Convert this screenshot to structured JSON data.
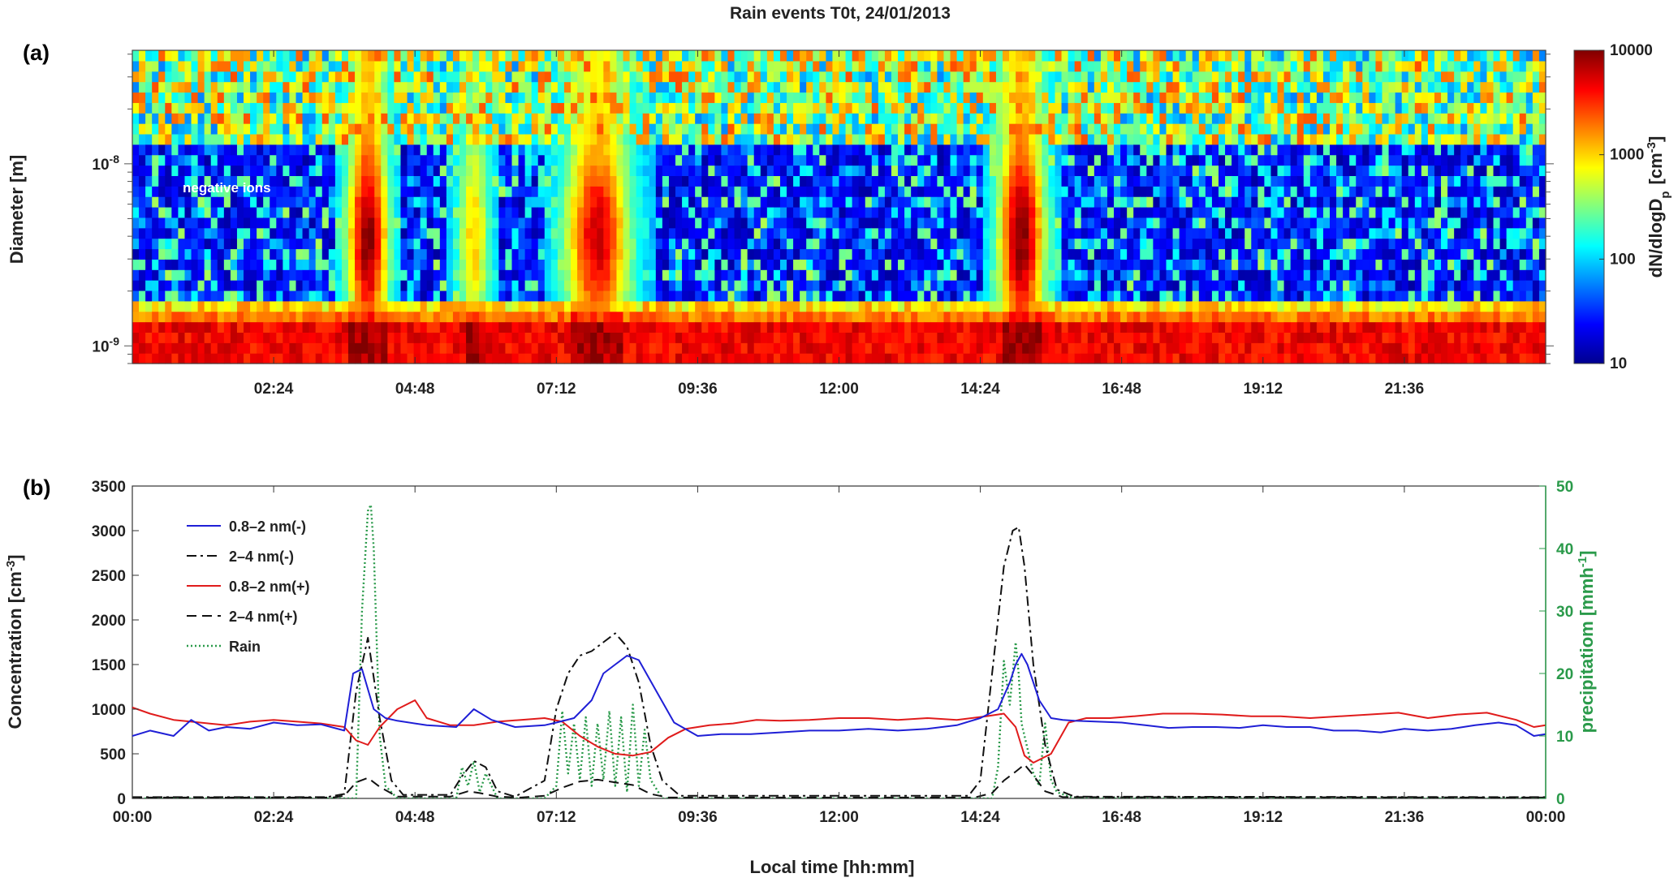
{
  "chart_data": [
    {
      "type": "heatmap",
      "panel_label": "(a)",
      "title": "Rain events T0t, 24/01/2013",
      "ylabel": "Diameter  [m]",
      "y_scale": "log",
      "ylim": [
        8e-10,
        4.2e-08
      ],
      "y_ticks": [
        {
          "value": 1e-09,
          "base": "10",
          "exp": "-9"
        },
        {
          "value": 1e-08,
          "base": "10",
          "exp": "-8"
        }
      ],
      "x_tick_labels": [
        "02:24",
        "04:48",
        "07:12",
        "09:36",
        "12:00",
        "14:24",
        "16:48",
        "19:12",
        "21:36"
      ],
      "x_tick_hours": [
        2.4,
        4.8,
        7.2,
        9.6,
        12.0,
        14.4,
        16.8,
        19.2,
        21.6
      ],
      "xlim_hours": [
        0,
        24
      ],
      "annotation": "negative ions",
      "colorbar": {
        "label_prefix": "dN/dlogD",
        "label_sub": "p",
        "label_unit": "[cm",
        "label_unit_exp": "-3",
        "label_close": "]",
        "scale": "log",
        "range": [
          10,
          10000
        ],
        "ticks": [
          {
            "value": 10,
            "label": "10"
          },
          {
            "value": 100,
            "label": "100"
          },
          {
            "value": 1000,
            "label": "1000"
          },
          {
            "value": 10000,
            "label": "10000"
          }
        ]
      },
      "rain_events_hours": [
        {
          "center": 4.0,
          "width": 0.35,
          "strength": 1.0
        },
        {
          "center": 5.8,
          "width": 0.28,
          "strength": 0.55
        },
        {
          "center": 7.9,
          "width": 0.55,
          "strength": 0.9
        },
        {
          "center": 15.1,
          "width": 0.4,
          "strength": 1.0
        }
      ]
    },
    {
      "type": "line",
      "panel_label": "(b)",
      "xlabel": "Local time [hh:mm]",
      "ylabel_left": "Concentration [cm",
      "ylabel_left_exp": "-3",
      "ylabel_left_close": "]",
      "ylabel_right": "precipitatiom [mmh",
      "ylabel_right_exp": "-1",
      "ylabel_right_close": "]",
      "xlim_hours": [
        0,
        24
      ],
      "x_tick_labels": [
        "00:00",
        "02:24",
        "04:48",
        "07:12",
        "09:36",
        "12:00",
        "14:24",
        "16:48",
        "19:12",
        "21:36",
        "00:00"
      ],
      "x_tick_hours": [
        0,
        2.4,
        4.8,
        7.2,
        9.6,
        12.0,
        14.4,
        16.8,
        19.2,
        21.6,
        24.0
      ],
      "ylim_left": [
        0,
        3500
      ],
      "y_ticks_left": [
        0,
        500,
        1000,
        1500,
        2000,
        2500,
        3000,
        3500
      ],
      "ylim_right": [
        0,
        50
      ],
      "y_ticks_right": [
        0,
        10,
        20,
        30,
        40,
        50
      ],
      "colors": {
        "blue": "#1f1fd6",
        "red": "#e01b1b",
        "black": "#111111",
        "green": "#2a9a4a"
      },
      "series": [
        {
          "name": "0.8–2 nm(-)",
          "color": "#1f1fd6",
          "dash": "solid",
          "axis": "left",
          "x": [
            0,
            0.3,
            0.7,
            1.0,
            1.3,
            1.6,
            2.0,
            2.4,
            2.8,
            3.2,
            3.6,
            3.75,
            3.9,
            4.1,
            4.3,
            4.5,
            5.0,
            5.5,
            5.8,
            6.1,
            6.5,
            7.0,
            7.2,
            7.5,
            7.8,
            8.0,
            8.2,
            8.4,
            8.6,
            8.9,
            9.2,
            9.6,
            10.0,
            10.5,
            11.0,
            11.5,
            12.0,
            12.5,
            13.0,
            13.5,
            14.0,
            14.4,
            14.7,
            14.9,
            15.0,
            15.1,
            15.2,
            15.4,
            15.6,
            15.8,
            16.0,
            16.4,
            16.8,
            17.2,
            17.6,
            18.0,
            18.4,
            18.8,
            19.2,
            19.6,
            20.0,
            20.4,
            20.8,
            21.2,
            21.6,
            22.0,
            22.4,
            22.8,
            23.2,
            23.5,
            23.8,
            24.0
          ],
          "y": [
            700,
            760,
            700,
            880,
            760,
            800,
            780,
            850,
            820,
            830,
            760,
            1400,
            1450,
            1000,
            900,
            870,
            820,
            800,
            1000,
            880,
            800,
            820,
            850,
            900,
            1100,
            1400,
            1500,
            1600,
            1550,
            1200,
            850,
            700,
            720,
            720,
            740,
            760,
            760,
            780,
            760,
            780,
            820,
            900,
            1000,
            1300,
            1500,
            1620,
            1500,
            1100,
            900,
            880,
            870,
            860,
            850,
            820,
            790,
            800,
            800,
            790,
            820,
            800,
            800,
            760,
            760,
            740,
            780,
            760,
            780,
            820,
            850,
            820,
            700,
            720
          ]
        },
        {
          "name": "2–4 nm(-)",
          "color": "#111111",
          "dash": "dashdot",
          "axis": "left",
          "x": [
            0,
            3.3,
            3.6,
            3.8,
            4.0,
            4.2,
            4.4,
            4.6,
            5.4,
            5.6,
            5.8,
            6.0,
            6.2,
            6.5,
            7.0,
            7.2,
            7.4,
            7.6,
            7.8,
            8.0,
            8.2,
            8.4,
            8.6,
            8.8,
            9.0,
            9.3,
            14.2,
            14.4,
            14.6,
            14.8,
            14.95,
            15.05,
            15.15,
            15.3,
            15.5,
            15.7,
            16.0,
            24.0
          ],
          "y": [
            15,
            15,
            50,
            1200,
            1800,
            900,
            200,
            40,
            40,
            250,
            420,
            350,
            80,
            20,
            200,
            1000,
            1400,
            1600,
            1650,
            1750,
            1850,
            1700,
            1300,
            600,
            200,
            30,
            30,
            200,
            1400,
            2600,
            3000,
            3040,
            2600,
            1500,
            600,
            100,
            20,
            15
          ]
        },
        {
          "name": "0.8–2 nm(+)",
          "color": "#e01b1b",
          "dash": "solid",
          "axis": "left",
          "x": [
            0,
            0.3,
            0.7,
            1.0,
            1.3,
            1.6,
            2.0,
            2.4,
            2.8,
            3.2,
            3.6,
            3.8,
            4.0,
            4.2,
            4.5,
            4.8,
            5.0,
            5.4,
            5.8,
            6.2,
            6.6,
            7.0,
            7.3,
            7.6,
            7.9,
            8.2,
            8.5,
            8.8,
            9.1,
            9.4,
            9.8,
            10.2,
            10.6,
            11.0,
            11.5,
            12.0,
            12.5,
            13.0,
            13.5,
            14.0,
            14.5,
            14.8,
            15.0,
            15.15,
            15.3,
            15.6,
            15.9,
            16.2,
            16.6,
            17.0,
            17.5,
            18.0,
            18.5,
            19.0,
            19.5,
            20.0,
            20.5,
            21.0,
            21.5,
            22.0,
            22.5,
            23.0,
            23.5,
            23.8,
            24.0
          ],
          "y": [
            1020,
            950,
            880,
            860,
            840,
            820,
            860,
            880,
            860,
            840,
            800,
            650,
            600,
            800,
            1000,
            1100,
            900,
            820,
            820,
            860,
            880,
            900,
            860,
            700,
            580,
            500,
            480,
            520,
            680,
            780,
            820,
            840,
            880,
            870,
            880,
            900,
            900,
            880,
            900,
            880,
            920,
            950,
            800,
            480,
            400,
            500,
            850,
            900,
            900,
            920,
            950,
            950,
            940,
            920,
            920,
            900,
            920,
            940,
            960,
            900,
            940,
            960,
            880,
            800,
            820
          ]
        },
        {
          "name": "2–4 nm(+)",
          "color": "#111111",
          "dash": "dashed",
          "axis": "left",
          "x": [
            0,
            3.4,
            3.6,
            3.8,
            4.0,
            4.2,
            4.5,
            5.4,
            5.7,
            5.9,
            6.2,
            6.6,
            7.0,
            7.3,
            7.6,
            7.9,
            8.2,
            8.5,
            8.8,
            9.1,
            14.3,
            14.6,
            14.8,
            15.0,
            15.15,
            15.3,
            15.5,
            15.8,
            24.0
          ],
          "y": [
            10,
            10,
            30,
            180,
            230,
            130,
            20,
            20,
            80,
            60,
            20,
            10,
            30,
            120,
            190,
            210,
            180,
            150,
            50,
            10,
            10,
            60,
            200,
            300,
            380,
            260,
            80,
            15,
            10
          ]
        },
        {
          "name": "Rain",
          "color": "#2a9a4a",
          "dash": "dotted",
          "axis": "right",
          "x": [
            0,
            3.8,
            3.9,
            4.0,
            4.05,
            4.1,
            4.2,
            4.3,
            4.5,
            5.5,
            5.6,
            5.7,
            5.8,
            5.9,
            6.0,
            6.2,
            7.0,
            7.2,
            7.3,
            7.4,
            7.5,
            7.6,
            7.7,
            7.8,
            7.9,
            8.0,
            8.1,
            8.2,
            8.3,
            8.4,
            8.5,
            8.6,
            8.7,
            8.8,
            9.0,
            14.6,
            14.7,
            14.8,
            14.9,
            15.0,
            15.05,
            15.1,
            15.2,
            15.3,
            15.4,
            15.5,
            15.6,
            15.7,
            16.0,
            24.0
          ],
          "y": [
            0,
            0,
            30,
            46,
            47,
            40,
            10,
            2,
            0,
            0,
            5,
            2,
            6,
            1,
            4,
            0,
            0,
            2,
            14,
            4,
            12,
            3,
            13,
            2,
            12,
            3,
            14,
            2,
            13,
            1,
            15,
            2,
            11,
            3,
            0,
            0,
            5,
            22,
            15,
            25,
            20,
            12,
            8,
            4,
            2,
            12,
            3,
            1,
            0,
            0
          ]
        }
      ]
    }
  ]
}
